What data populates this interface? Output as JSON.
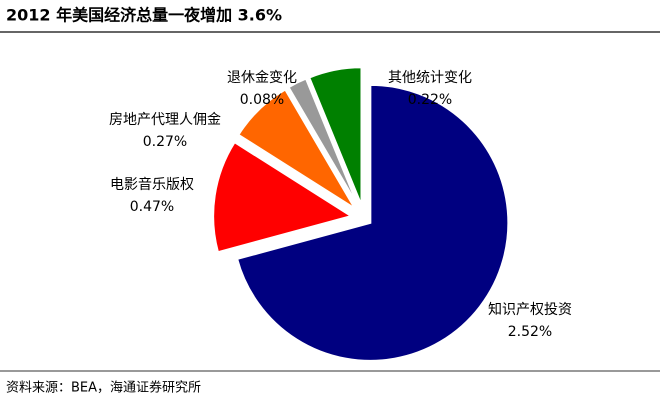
{
  "chart_data": {
    "type": "pie",
    "title": "2012 年美国经济总量一夜增加 3.6%",
    "categories": [
      "知识产权投资",
      "电影音乐版权",
      "房地产代理人佣金",
      "退休金变化",
      "其他统计变化"
    ],
    "values": [
      2.52,
      0.47,
      0.27,
      0.08,
      0.22
    ],
    "value_labels": [
      "2.52%",
      "0.47%",
      "0.27%",
      "0.08%",
      "0.22%"
    ],
    "colors": [
      "#000080",
      "#ff0000",
      "#ff6600",
      "#999999",
      "#008000"
    ],
    "source": "资料来源：BEA，海通证券研究所"
  }
}
